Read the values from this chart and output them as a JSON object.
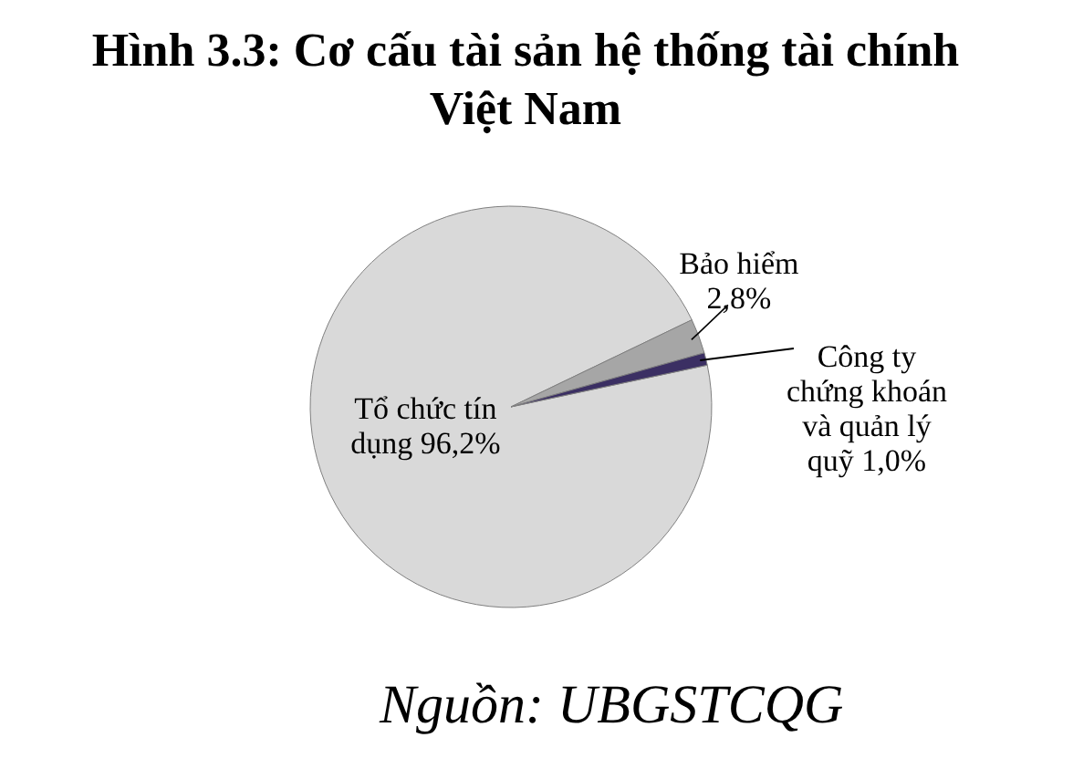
{
  "chart_data": {
    "type": "pie",
    "title": "Hình 3.3: Cơ cấu tài sản hệ thống tài chính Việt Nam",
    "categories": [
      "Tổ chức tín dụng",
      "Bảo hiểm",
      "Công ty chứng khoán và quản lý quỹ"
    ],
    "values": [
      96.2,
      2.8,
      1.0
    ],
    "value_labels": [
      "96,2%",
      "2,8%",
      "1,0%"
    ],
    "colors": [
      "#d9d9d9",
      "#a6a6a6",
      "#3b2f63"
    ],
    "annotations": [
      "Nguồn: UBGSTCQG"
    ],
    "legend": false
  }
}
